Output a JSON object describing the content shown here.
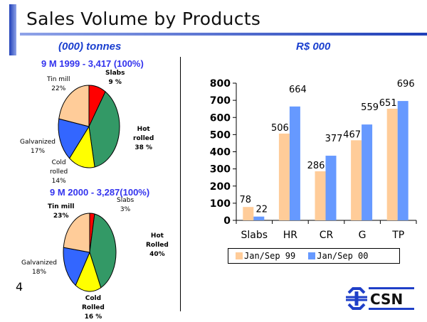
{
  "header": {
    "title": "Sales Volume by Products"
  },
  "units": {
    "left": "(000) tonnes",
    "right": "R$ 000"
  },
  "page_number": "4",
  "logo": {
    "text": "CSN"
  },
  "colors": {
    "slabs": "#ff0000",
    "hot_rolled": "#339966",
    "cold_rolled": "#ffff00",
    "galvanized": "#3366ff",
    "tin_mill": "#ffcc99",
    "series_99": "#ffcc99",
    "series_00": "#6699ff",
    "title_blue": "#3333ee"
  },
  "chart_data": [
    {
      "type": "pie",
      "title": "9 M 1999 - 3,417 (100%)",
      "slices": [
        {
          "name": "Slabs",
          "label_lines": [
            "Slabs",
            "9 %"
          ],
          "value": 9,
          "color": "#ff0000"
        },
        {
          "name": "Hot rolled",
          "label_lines": [
            "Hot",
            "rolled",
            "38 %"
          ],
          "value": 38,
          "color": "#339966"
        },
        {
          "name": "Cold rolled",
          "label_lines": [
            "Cold",
            "rolled",
            "14%"
          ],
          "value": 14,
          "color": "#ffff00"
        },
        {
          "name": "Galvanized",
          "label_lines": [
            "Galvanized",
            "17%"
          ],
          "value": 17,
          "color": "#3366ff"
        },
        {
          "name": "Tin mill",
          "label_lines": [
            "Tin mill",
            "22%"
          ],
          "value": 22,
          "color": "#ffcc99"
        }
      ]
    },
    {
      "type": "pie",
      "title": "9 M 2000 - 3,287(100%)",
      "slices": [
        {
          "name": "Slabs",
          "label_lines": [
            "Slabs",
            "3%"
          ],
          "value": 3,
          "color": "#ff0000"
        },
        {
          "name": "Hot Rolled",
          "label_lines": [
            "Hot",
            "Rolled",
            "40%"
          ],
          "value": 40,
          "color": "#339966"
        },
        {
          "name": "Cold Rolled",
          "label_lines": [
            "Cold",
            "Rolled",
            "16 %"
          ],
          "value": 16,
          "color": "#ffff00"
        },
        {
          "name": "Galvanized",
          "label_lines": [
            "Galvanized",
            "18%"
          ],
          "value": 18,
          "color": "#3366ff"
        },
        {
          "name": "Tin mill",
          "label_lines": [
            "Tin mill",
            "23%"
          ],
          "value": 23,
          "color": "#ffcc99"
        }
      ]
    },
    {
      "type": "bar",
      "title": "R$ 000",
      "categories": [
        "Slabs",
        "HR",
        "CR",
        "G",
        "TP"
      ],
      "series": [
        {
          "name": "Jan/Sep 99",
          "values": [
            78,
            506,
            286,
            467,
            651
          ],
          "color": "#ffcc99"
        },
        {
          "name": "Jan/Sep 00",
          "values": [
            22,
            664,
            377,
            559,
            696
          ],
          "color": "#6699ff"
        }
      ],
      "ylim": [
        0,
        800
      ],
      "yticks": [
        0,
        100,
        200,
        300,
        400,
        500,
        600,
        700,
        800
      ],
      "grid": false,
      "legend": "bottom"
    }
  ]
}
